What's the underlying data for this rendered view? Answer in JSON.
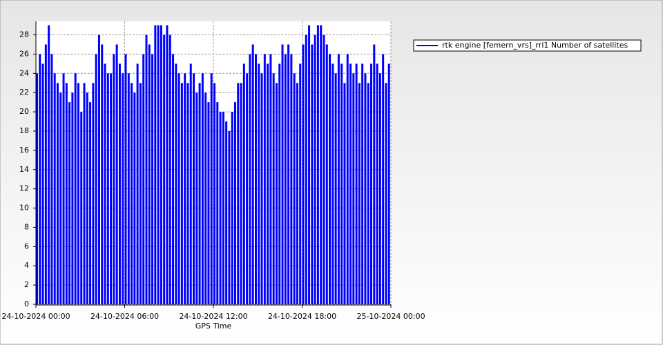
{
  "chart_data": {
    "type": "bar",
    "x_label": "GPS Time",
    "x": [
      0,
      0.2,
      0.4,
      0.6,
      0.8,
      1,
      1.2,
      1.4,
      1.6,
      1.8,
      2,
      2.2,
      2.4,
      2.6,
      2.8,
      3,
      3.2,
      3.4,
      3.6,
      3.8,
      4,
      4.2,
      4.4,
      4.6,
      4.8,
      5,
      5.2,
      5.4,
      5.6,
      5.8,
      6,
      6.2,
      6.4,
      6.6,
      6.8,
      7,
      7.2,
      7.4,
      7.6,
      7.8,
      8,
      8.2,
      8.4,
      8.6,
      8.8,
      9,
      9.2,
      9.4,
      9.6,
      9.8,
      10,
      10.2,
      10.4,
      10.6,
      10.8,
      11,
      11.2,
      11.4,
      11.6,
      11.8,
      12,
      12.2,
      12.4,
      12.6,
      12.8,
      13,
      13.2,
      13.4,
      13.6,
      13.8,
      14,
      14.2,
      14.4,
      14.6,
      14.8,
      15,
      15.2,
      15.4,
      15.6,
      15.8,
      16,
      16.2,
      16.4,
      16.6,
      16.8,
      17,
      17.2,
      17.4,
      17.6,
      17.8,
      18,
      18.2,
      18.4,
      18.6,
      18.8,
      19,
      19.2,
      19.4,
      19.6,
      19.8,
      20,
      20.2,
      20.4,
      20.6,
      20.8,
      21,
      21.2,
      21.4,
      21.6,
      21.8,
      22,
      22.2,
      22.4,
      22.6,
      22.8,
      23,
      23.2,
      23.4,
      23.6,
      23.8
    ],
    "series": [
      {
        "name": "rtk engine [femern_vrs]_rri1 Number of satellites",
        "color": "#0000ff",
        "values": [
          24,
          26,
          25,
          27,
          29,
          26,
          24,
          23,
          22,
          24,
          23,
          21,
          22,
          24,
          23,
          20,
          23,
          22,
          21,
          23,
          26,
          28,
          27,
          25,
          24,
          24,
          26,
          27,
          25,
          24,
          26,
          24,
          23,
          22,
          25,
          23,
          26,
          28,
          27,
          26,
          29,
          29,
          29,
          28,
          29,
          28,
          26,
          25,
          24,
          23,
          24,
          23,
          25,
          24,
          22,
          23,
          24,
          22,
          21,
          24,
          23,
          21,
          20,
          20,
          19,
          18,
          20,
          21,
          23,
          23,
          25,
          24,
          26,
          27,
          26,
          25,
          24,
          26,
          25,
          26,
          24,
          23,
          25,
          27,
          26,
          27,
          26,
          24,
          23,
          25,
          27,
          28,
          29,
          27,
          28,
          29,
          29,
          28,
          27,
          26,
          25,
          24,
          26,
          25,
          23,
          26,
          25,
          24,
          25,
          23,
          25,
          24,
          23,
          25,
          27,
          25,
          24,
          26,
          23,
          25
        ]
      }
    ],
    "xlim": [
      0,
      24
    ],
    "xticks": [
      {
        "value": 0,
        "label": "24-10-2024 00:00"
      },
      {
        "value": 6,
        "label": "24-10-2024 06:00"
      },
      {
        "value": 12,
        "label": "24-10-2024 12:00"
      },
      {
        "value": 18,
        "label": "24-10-2024 18:00"
      },
      {
        "value": 24,
        "label": "25-10-2024 00:00"
      }
    ],
    "ylim": [
      0,
      29.4
    ],
    "yticks": [
      0,
      2,
      4,
      6,
      8,
      10,
      12,
      14,
      16,
      18,
      20,
      22,
      24,
      26,
      28
    ],
    "grid": true,
    "legend": "top-right"
  }
}
